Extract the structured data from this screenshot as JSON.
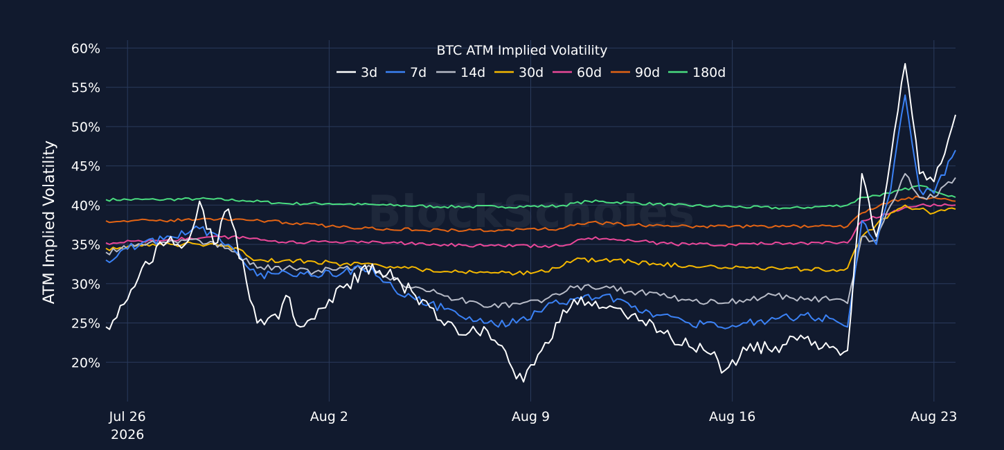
{
  "watermark": "BlockScholes",
  "chart_data": {
    "type": "line",
    "title": "BTC ATM Implied Volatility",
    "ylabel": "ATM Implied Volatility",
    "xlabel": "",
    "x_range": [
      "2026-07-25T06:00",
      "2026-08-23T18:00"
    ],
    "ylim": [
      15,
      61
    ],
    "y_ticks": [
      20,
      25,
      30,
      35,
      40,
      45,
      50,
      55,
      60
    ],
    "y_tick_labels": [
      "20%",
      "25%",
      "30%",
      "35%",
      "40%",
      "45%",
      "50%",
      "55%",
      "60%"
    ],
    "x_ticks": [
      "2026-07-26",
      "2026-08-02",
      "2026-08-09",
      "2026-08-16",
      "2026-08-23"
    ],
    "x_tick_labels": [
      {
        "line1": "Jul 26",
        "line2": "2026"
      },
      {
        "line1": "Aug 2",
        "line2": ""
      },
      {
        "line1": "Aug 9",
        "line2": ""
      },
      {
        "line1": "Aug 16",
        "line2": ""
      },
      {
        "line1": "Aug 23",
        "line2": ""
      }
    ],
    "grid": true,
    "legend_position": "top-center",
    "series": [
      {
        "name": "3d",
        "color": "#ffffff",
        "x": [
          "2026-07-25T06:00",
          "2026-07-26T00:00",
          "2026-07-26T12:00",
          "2026-07-27T12:00",
          "2026-07-28T00:00",
          "2026-07-28T12:00",
          "2026-07-29T00:00",
          "2026-07-29T12:00",
          "2026-07-30T12:00",
          "2026-07-31T06:00",
          "2026-07-31T12:00",
          "2026-08-01T00:00",
          "2026-08-01T12:00",
          "2026-08-02T00:00",
          "2026-08-02T12:00",
          "2026-08-03T12:00",
          "2026-08-04T12:00",
          "2026-08-05T12:00",
          "2026-08-06T12:00",
          "2026-08-07T12:00",
          "2026-08-08T06:00",
          "2026-08-08T18:00",
          "2026-08-09T12:00",
          "2026-08-10T12:00",
          "2026-08-11T12:00",
          "2026-08-12T12:00",
          "2026-08-13T12:00",
          "2026-08-14T12:00",
          "2026-08-15T06:00",
          "2026-08-15T18:00",
          "2026-08-16T12:00",
          "2026-08-17T12:00",
          "2026-08-18T12:00",
          "2026-08-19T12:00",
          "2026-08-20T00:00",
          "2026-08-20T12:00",
          "2026-08-21T00:00",
          "2026-08-21T12:00",
          "2026-08-22T00:00",
          "2026-08-22T12:00",
          "2026-08-23T00:00",
          "2026-08-23T18:00"
        ],
        "values": [
          24.5,
          28.0,
          32.0,
          36.0,
          35.0,
          40.5,
          35.0,
          39.5,
          25.0,
          25.5,
          28.5,
          24.5,
          25.5,
          28.0,
          29.5,
          32.5,
          30.0,
          27.0,
          23.5,
          24.0,
          20.0,
          17.5,
          22.5,
          28.0,
          27.0,
          26.0,
          24.0,
          22.0,
          21.0,
          19.0,
          21.5,
          22.0,
          23.0,
          22.0,
          21.5,
          44.0,
          36.0,
          46.0,
          58.0,
          44.0,
          43.0,
          51.5
        ]
      },
      {
        "name": "7d",
        "color": "#3b82f6",
        "x": [
          "2026-07-25T06:00",
          "2026-07-26T00:00",
          "2026-07-27T12:00",
          "2026-07-28T12:00",
          "2026-07-29T12:00",
          "2026-07-30T12:00",
          "2026-07-31T12:00",
          "2026-08-01T12:00",
          "2026-08-02T12:00",
          "2026-08-03T12:00",
          "2026-08-04T12:00",
          "2026-08-05T12:00",
          "2026-08-06T12:00",
          "2026-08-07T12:00",
          "2026-08-08T12:00",
          "2026-08-09T12:00",
          "2026-08-10T12:00",
          "2026-08-11T12:00",
          "2026-08-12T12:00",
          "2026-08-13T12:00",
          "2026-08-14T12:00",
          "2026-08-15T12:00",
          "2026-08-16T12:00",
          "2026-08-17T12:00",
          "2026-08-18T12:00",
          "2026-08-19T12:00",
          "2026-08-20T00:00",
          "2026-08-20T12:00",
          "2026-08-21T00:00",
          "2026-08-21T12:00",
          "2026-08-22T00:00",
          "2026-08-22T12:00",
          "2026-08-23T00:00",
          "2026-08-23T18:00"
        ],
        "values": [
          33.0,
          34.5,
          36.0,
          37.0,
          35.0,
          31.0,
          31.5,
          31.0,
          31.5,
          32.0,
          28.5,
          27.5,
          26.0,
          25.0,
          25.0,
          27.0,
          28.0,
          28.5,
          27.0,
          26.0,
          25.0,
          24.5,
          25.0,
          25.5,
          26.0,
          25.5,
          24.5,
          38.0,
          35.0,
          42.0,
          54.0,
          42.0,
          41.5,
          47.0
        ]
      },
      {
        "name": "14d",
        "color": "#b8bcc8",
        "x": [
          "2026-07-25T06:00",
          "2026-07-26T12:00",
          "2026-07-27T12:00",
          "2026-07-28T12:00",
          "2026-07-29T12:00",
          "2026-07-30T12:00",
          "2026-07-31T12:00",
          "2026-08-01T12:00",
          "2026-08-02T12:00",
          "2026-08-03T12:00",
          "2026-08-04T12:00",
          "2026-08-05T12:00",
          "2026-08-06T12:00",
          "2026-08-07T12:00",
          "2026-08-08T12:00",
          "2026-08-09T12:00",
          "2026-08-10T12:00",
          "2026-08-11T12:00",
          "2026-08-12T12:00",
          "2026-08-13T12:00",
          "2026-08-14T12:00",
          "2026-08-15T12:00",
          "2026-08-16T12:00",
          "2026-08-17T12:00",
          "2026-08-18T12:00",
          "2026-08-19T12:00",
          "2026-08-20T00:00",
          "2026-08-20T12:00",
          "2026-08-21T00:00",
          "2026-08-21T12:00",
          "2026-08-22T00:00",
          "2026-08-22T12:00",
          "2026-08-23T00:00",
          "2026-08-23T18:00"
        ],
        "values": [
          34.0,
          35.0,
          35.5,
          35.5,
          34.5,
          32.0,
          32.0,
          31.5,
          32.0,
          32.0,
          30.0,
          29.0,
          28.0,
          27.0,
          27.5,
          28.0,
          29.5,
          29.5,
          29.0,
          28.5,
          28.0,
          27.5,
          28.0,
          28.5,
          28.0,
          28.0,
          27.5,
          36.0,
          35.5,
          40.0,
          44.0,
          41.0,
          41.0,
          43.5
        ]
      },
      {
        "name": "30d",
        "color": "#f5b800",
        "x": [
          "2026-07-25T06:00",
          "2026-07-26T12:00",
          "2026-07-27T12:00",
          "2026-07-28T12:00",
          "2026-07-29T12:00",
          "2026-07-30T12:00",
          "2026-07-31T12:00",
          "2026-08-01T12:00",
          "2026-08-02T12:00",
          "2026-08-03T12:00",
          "2026-08-04T12:00",
          "2026-08-05T12:00",
          "2026-08-06T12:00",
          "2026-08-07T12:00",
          "2026-08-08T12:00",
          "2026-08-09T12:00",
          "2026-08-10T12:00",
          "2026-08-11T12:00",
          "2026-08-12T12:00",
          "2026-08-13T12:00",
          "2026-08-14T12:00",
          "2026-08-15T12:00",
          "2026-08-16T12:00",
          "2026-08-17T12:00",
          "2026-08-18T12:00",
          "2026-08-19T12:00",
          "2026-08-20T00:00",
          "2026-08-20T12:00",
          "2026-08-21T00:00",
          "2026-08-21T12:00",
          "2026-08-22T00:00",
          "2026-08-22T12:00",
          "2026-08-23T00:00",
          "2026-08-23T18:00"
        ],
        "values": [
          34.5,
          34.8,
          35.0,
          35.0,
          34.8,
          33.0,
          33.0,
          32.8,
          32.5,
          32.5,
          32.0,
          31.8,
          31.5,
          31.5,
          31.3,
          31.5,
          33.0,
          33.0,
          32.8,
          32.5,
          32.3,
          32.0,
          32.0,
          32.0,
          31.8,
          31.8,
          32.0,
          36.0,
          37.5,
          39.0,
          40.0,
          39.5,
          39.0,
          39.5
        ]
      },
      {
        "name": "60d",
        "color": "#ec4899",
        "x": [
          "2026-07-25T06:00",
          "2026-07-27T00:00",
          "2026-07-28T12:00",
          "2026-07-30T00:00",
          "2026-07-31T12:00",
          "2026-08-02T00:00",
          "2026-08-04T00:00",
          "2026-08-06T00:00",
          "2026-08-08T00:00",
          "2026-08-10T00:00",
          "2026-08-11T00:00",
          "2026-08-12T12:00",
          "2026-08-14T00:00",
          "2026-08-16T00:00",
          "2026-08-18T00:00",
          "2026-08-20T00:00",
          "2026-08-20T12:00",
          "2026-08-21T12:00",
          "2026-08-22T12:00",
          "2026-08-23T18:00"
        ],
        "values": [
          35.2,
          35.5,
          35.8,
          36.0,
          35.2,
          35.3,
          35.2,
          35.0,
          34.8,
          34.8,
          35.8,
          35.5,
          35.0,
          35.0,
          35.2,
          35.2,
          38.0,
          39.0,
          40.0,
          40.0
        ]
      },
      {
        "name": "90d",
        "color": "#e36414",
        "x": [
          "2026-07-25T06:00",
          "2026-07-27T00:00",
          "2026-07-28T12:00",
          "2026-07-30T00:00",
          "2026-07-31T12:00",
          "2026-08-02T00:00",
          "2026-08-04T00:00",
          "2026-08-06T00:00",
          "2026-08-08T00:00",
          "2026-08-10T00:00",
          "2026-08-11T00:00",
          "2026-08-12T12:00",
          "2026-08-14T00:00",
          "2026-08-16T00:00",
          "2026-08-18T00:00",
          "2026-08-20T00:00",
          "2026-08-20T12:00",
          "2026-08-21T12:00",
          "2026-08-22T12:00",
          "2026-08-23T18:00"
        ],
        "values": [
          38.0,
          38.0,
          38.2,
          38.2,
          37.8,
          37.3,
          37.0,
          36.8,
          36.8,
          37.0,
          37.8,
          37.5,
          37.3,
          37.3,
          37.3,
          37.3,
          39.0,
          40.5,
          41.0,
          40.5
        ]
      },
      {
        "name": "180d",
        "color": "#4ade80",
        "x": [
          "2026-07-25T06:00",
          "2026-07-27T00:00",
          "2026-07-28T12:00",
          "2026-07-30T00:00",
          "2026-07-31T12:00",
          "2026-08-02T00:00",
          "2026-08-04T00:00",
          "2026-08-06T00:00",
          "2026-08-08T00:00",
          "2026-08-10T00:00",
          "2026-08-11T00:00",
          "2026-08-12T12:00",
          "2026-08-14T00:00",
          "2026-08-16T00:00",
          "2026-08-18T00:00",
          "2026-08-20T00:00",
          "2026-08-20T12:00",
          "2026-08-21T12:00",
          "2026-08-22T12:00",
          "2026-08-23T18:00"
        ],
        "values": [
          40.7,
          40.7,
          40.8,
          40.6,
          40.2,
          40.2,
          40.0,
          39.8,
          39.8,
          39.9,
          40.5,
          40.3,
          40.0,
          39.8,
          39.6,
          40.0,
          41.0,
          41.5,
          42.5,
          41.0
        ]
      }
    ]
  }
}
